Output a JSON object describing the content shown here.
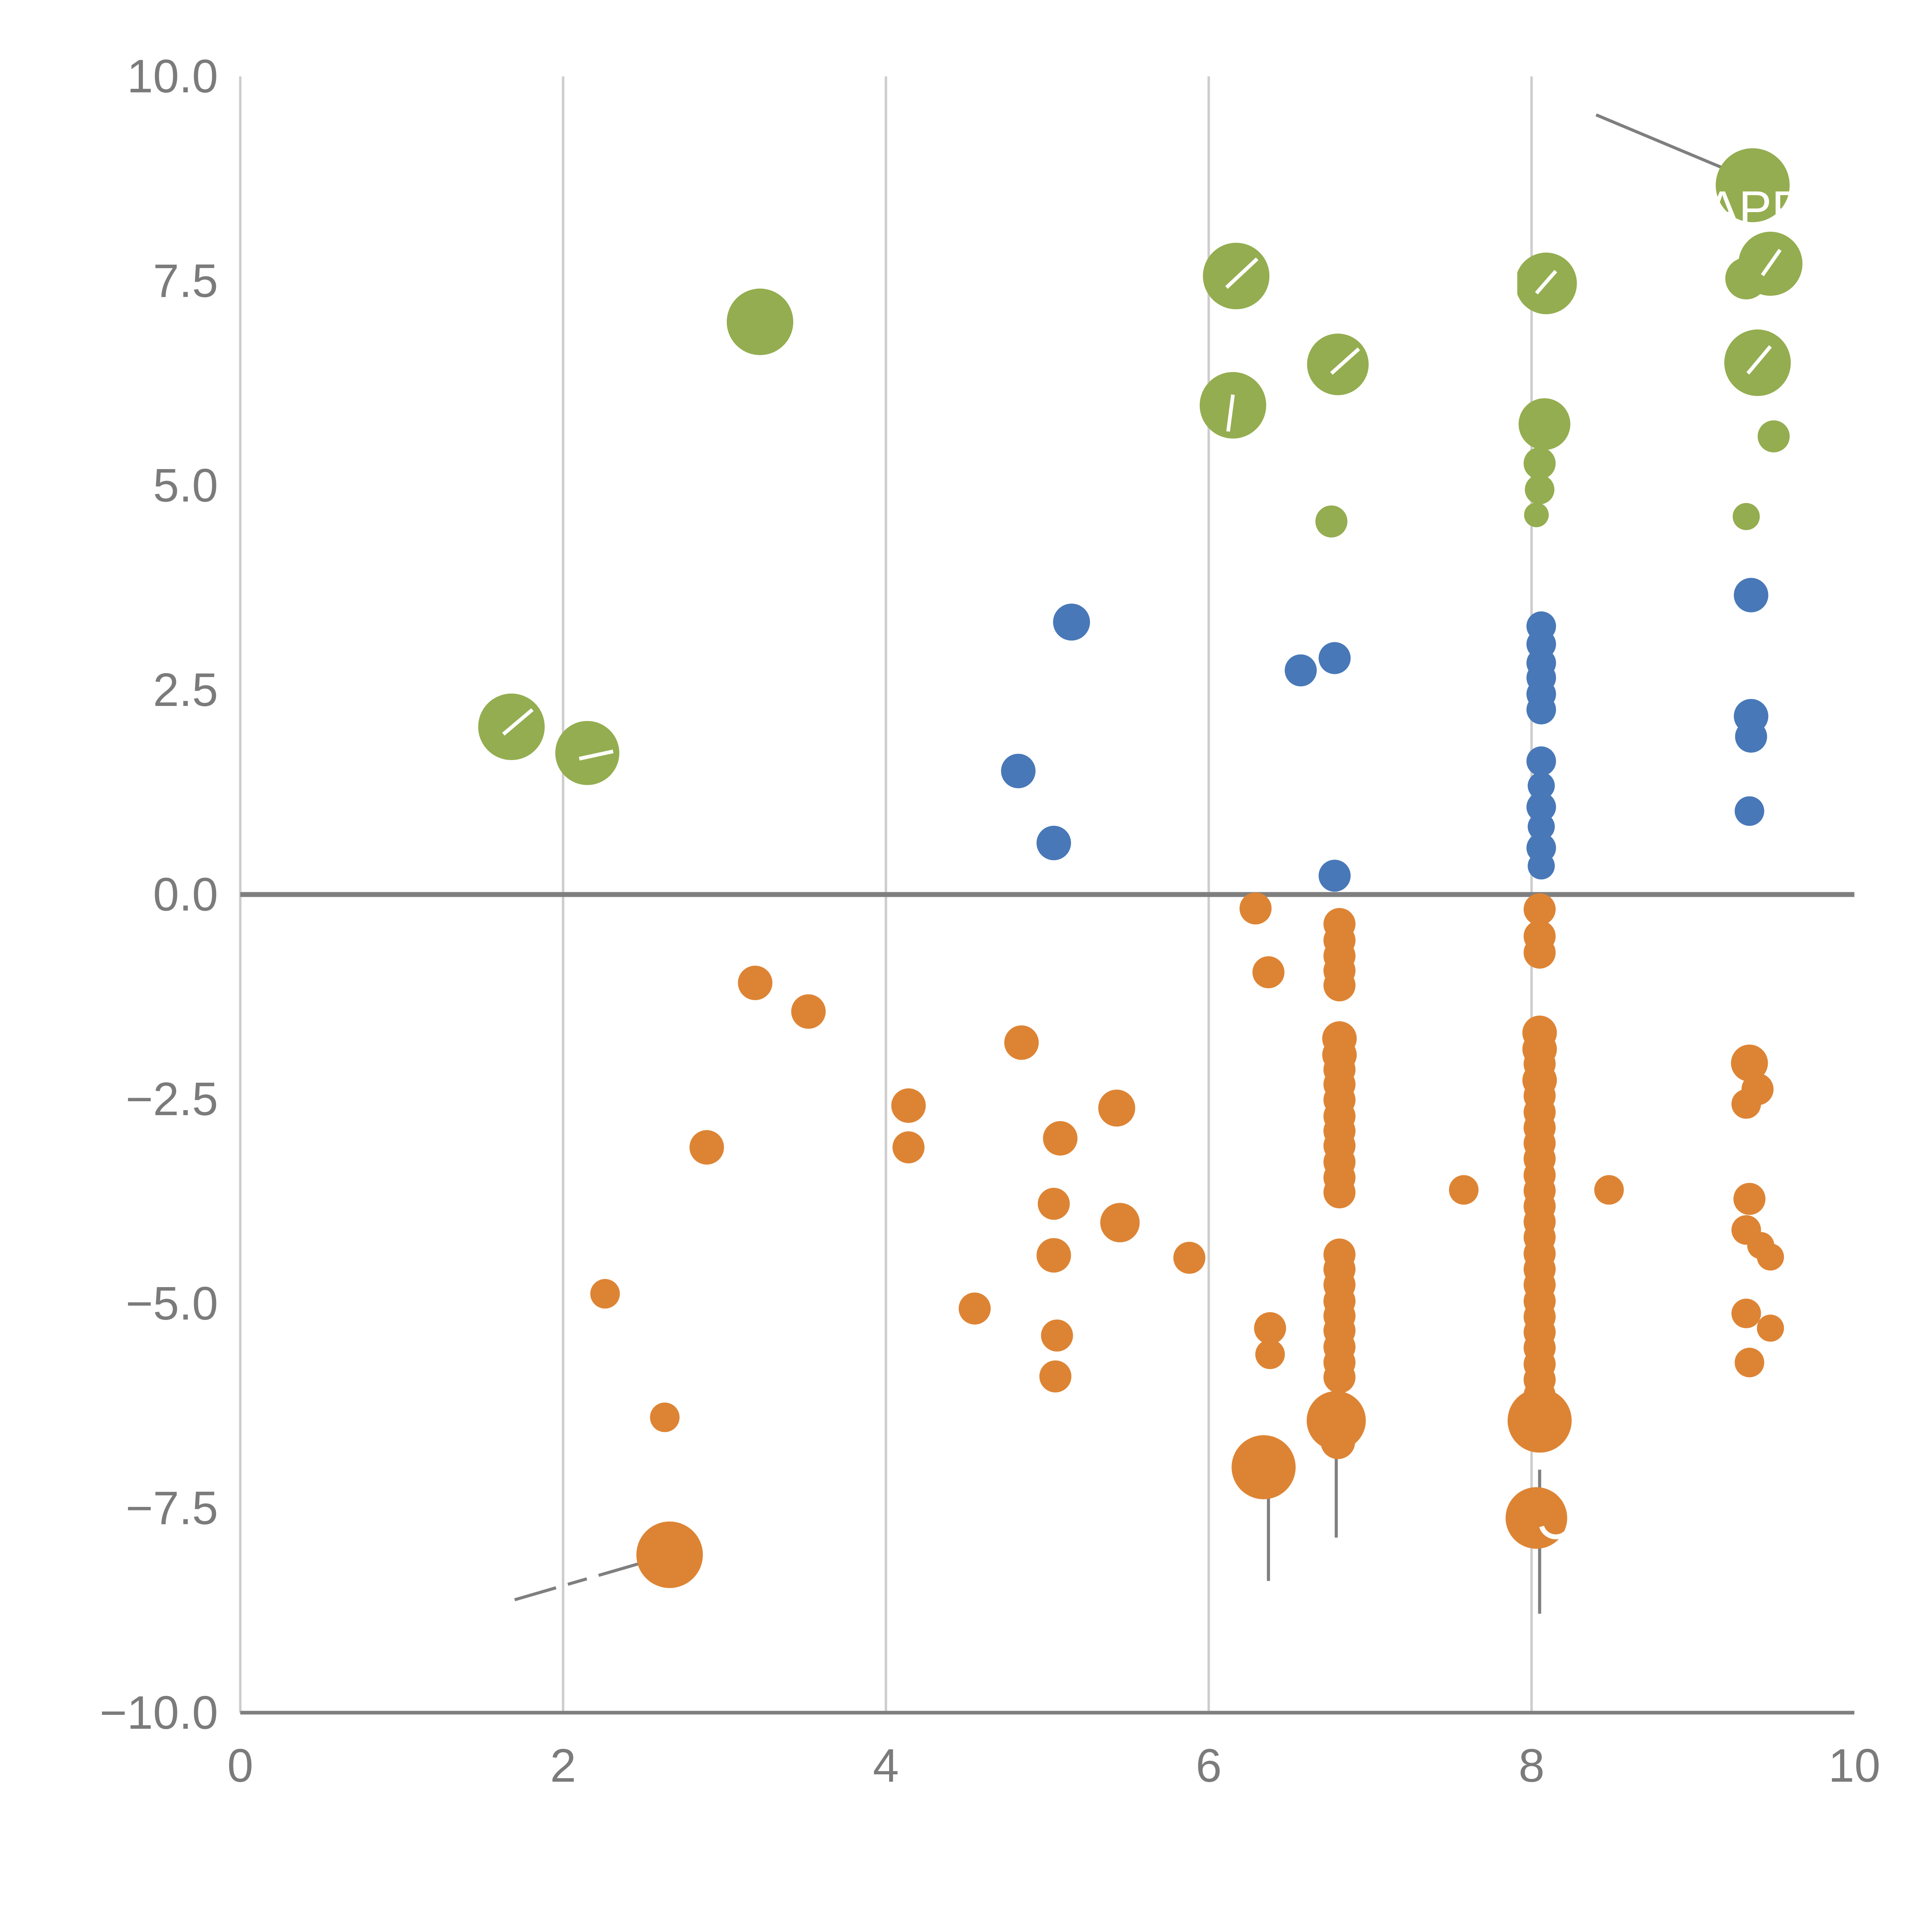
{
  "page": {
    "background": "#ffffff"
  },
  "chart_data": {
    "type": "scatter",
    "title": "",
    "xlabel": "",
    "ylabel": "",
    "xlim": [
      0,
      10
    ],
    "ylim": [
      -10,
      10
    ],
    "grid_on": true,
    "grid_x": [
      2,
      4,
      6,
      8
    ],
    "zero_line_y": 0,
    "x_ticks": [
      {
        "v": 0,
        "label": "0"
      },
      {
        "v": 2,
        "label": "2"
      },
      {
        "v": 4,
        "label": "4"
      },
      {
        "v": 6,
        "label": "6"
      },
      {
        "v": 8,
        "label": "8"
      },
      {
        "v": 10,
        "label": "10"
      }
    ],
    "y_ticks": [
      {
        "v": 10,
        "label": "10.0"
      },
      {
        "v": 7.5,
        "label": "7.5"
      },
      {
        "v": 5,
        "label": "5.0"
      },
      {
        "v": 2.5,
        "label": "2.5"
      },
      {
        "v": 0,
        "label": "0.0"
      },
      {
        "v": -2.5,
        "label": "−2.5"
      },
      {
        "v": -5,
        "label": "−5.0"
      },
      {
        "v": -7.5,
        "label": "−7.5"
      },
      {
        "v": -10,
        "label": "−10.0"
      }
    ],
    "colors": {
      "axis": "#7f7f7f",
      "grid": "#cdcdcd",
      "spine_light": "#cdcdcd",
      "tick_label": "#7b7b7b",
      "green": "#94ad50",
      "blue": "#4878b8",
      "orange": "#dd8434",
      "annotation_line": "#7f7f7f",
      "label_text": "#ffffff"
    },
    "series": [
      {
        "name": "green",
        "color_key": "green",
        "points": [
          [
            1.68,
            2.05,
            27
          ],
          [
            2.15,
            1.73,
            26
          ],
          [
            3.22,
            7.0,
            27
          ],
          [
            6.17,
            7.56,
            27
          ],
          [
            6.15,
            5.98,
            27
          ],
          [
            6.8,
            6.48,
            25
          ],
          [
            6.76,
            4.56,
            13
          ],
          [
            8.09,
            7.47,
            25
          ],
          [
            8.08,
            5.75,
            21
          ],
          [
            8.05,
            5.27,
            13
          ],
          [
            8.05,
            4.95,
            12
          ],
          [
            8.03,
            4.64,
            10
          ],
          [
            9.37,
            8.67,
            30
          ],
          [
            9.48,
            7.71,
            26
          ],
          [
            9.33,
            7.53,
            17
          ],
          [
            9.4,
            6.5,
            27
          ],
          [
            9.5,
            5.6,
            13
          ],
          [
            9.33,
            4.62,
            11
          ]
        ]
      },
      {
        "name": "blue",
        "color_key": "blue",
        "points": [
          [
            5.15,
            3.33,
            15
          ],
          [
            4.82,
            1.51,
            14
          ],
          [
            5.04,
            0.63,
            14
          ],
          [
            6.57,
            2.74,
            13
          ],
          [
            6.78,
            2.89,
            13
          ],
          [
            6.78,
            0.23,
            13
          ],
          [
            8.06,
            3.28,
            12
          ],
          [
            8.06,
            3.06,
            12
          ],
          [
            8.06,
            2.83,
            12
          ],
          [
            8.06,
            2.65,
            12
          ],
          [
            8.06,
            2.45,
            12
          ],
          [
            8.06,
            2.26,
            12
          ],
          [
            8.06,
            1.63,
            12
          ],
          [
            8.06,
            1.33,
            11
          ],
          [
            8.06,
            1.07,
            12
          ],
          [
            8.06,
            0.83,
            11
          ],
          [
            8.06,
            0.57,
            12
          ],
          [
            8.06,
            0.35,
            11
          ],
          [
            9.36,
            3.66,
            14
          ],
          [
            9.36,
            2.18,
            14
          ],
          [
            9.36,
            1.93,
            13
          ],
          [
            9.35,
            1.02,
            12
          ]
        ]
      },
      {
        "name": "orange",
        "color_key": "orange",
        "points": [
          [
            3.19,
            -1.08,
            14
          ],
          [
            3.52,
            -1.43,
            14
          ],
          [
            4.84,
            -1.81,
            14
          ],
          [
            4.14,
            -2.58,
            14
          ],
          [
            4.14,
            -3.09,
            13
          ],
          [
            5.43,
            -2.61,
            15
          ],
          [
            5.08,
            -2.98,
            14
          ],
          [
            2.89,
            -3.09,
            14
          ],
          [
            5.04,
            -3.78,
            13
          ],
          [
            5.45,
            -4.01,
            16
          ],
          [
            5.88,
            -4.44,
            13
          ],
          [
            5.04,
            -4.41,
            14
          ],
          [
            4.55,
            -5.06,
            13
          ],
          [
            5.06,
            -5.39,
            13
          ],
          [
            5.05,
            -5.89,
            13
          ],
          [
            2.26,
            -4.88,
            12
          ],
          [
            2.63,
            -6.39,
            12
          ],
          [
            2.66,
            -8.07,
            27
          ],
          [
            6.29,
            -0.17,
            13
          ],
          [
            6.37,
            -0.95,
            13
          ],
          [
            6.38,
            -5.3,
            13
          ],
          [
            6.38,
            -5.62,
            12
          ],
          [
            6.34,
            -7.0,
            26
          ],
          [
            6.79,
            -6.43,
            24
          ],
          [
            6.8,
            -6.69,
            14
          ],
          [
            7.58,
            -3.61,
            12
          ],
          [
            8.48,
            -3.61,
            12
          ],
          [
            6.81,
            -0.36,
            13
          ],
          [
            6.81,
            -0.56,
            13
          ],
          [
            6.81,
            -0.75,
            13
          ],
          [
            6.81,
            -0.93,
            13
          ],
          [
            6.81,
            -1.11,
            13
          ],
          [
            6.81,
            -1.76,
            14
          ],
          [
            6.81,
            -1.96,
            14
          ],
          [
            6.81,
            -2.14,
            13
          ],
          [
            6.81,
            -2.32,
            13
          ],
          [
            6.81,
            -2.51,
            13
          ],
          [
            6.81,
            -2.71,
            13
          ],
          [
            6.81,
            -2.89,
            13
          ],
          [
            6.81,
            -3.07,
            13
          ],
          [
            6.81,
            -3.27,
            13
          ],
          [
            6.81,
            -3.46,
            13
          ],
          [
            6.81,
            -3.64,
            13
          ],
          [
            6.81,
            -4.4,
            13
          ],
          [
            6.81,
            -4.58,
            13
          ],
          [
            6.81,
            -4.77,
            13
          ],
          [
            6.81,
            -4.97,
            13
          ],
          [
            6.81,
            -5.15,
            13
          ],
          [
            6.81,
            -5.33,
            13
          ],
          [
            6.81,
            -5.53,
            13
          ],
          [
            6.81,
            -5.72,
            13
          ],
          [
            6.81,
            -5.9,
            13
          ],
          [
            8.05,
            -0.18,
            13
          ],
          [
            8.05,
            -0.51,
            13
          ],
          [
            8.05,
            -0.71,
            13
          ],
          [
            8.05,
            -1.69,
            14
          ],
          [
            8.05,
            -1.89,
            14
          ],
          [
            8.05,
            -2.07,
            13
          ],
          [
            8.05,
            -2.27,
            14
          ],
          [
            8.05,
            -2.46,
            13
          ],
          [
            8.05,
            -2.66,
            13
          ],
          [
            8.05,
            -2.85,
            13
          ],
          [
            8.05,
            -3.04,
            13
          ],
          [
            8.05,
            -3.23,
            13
          ],
          [
            8.05,
            -3.43,
            13
          ],
          [
            8.05,
            -3.62,
            13
          ],
          [
            8.05,
            -3.81,
            13
          ],
          [
            8.05,
            -4.0,
            13
          ],
          [
            8.05,
            -4.19,
            13
          ],
          [
            8.05,
            -4.39,
            13
          ],
          [
            8.05,
            -4.58,
            13
          ],
          [
            8.05,
            -4.77,
            13
          ],
          [
            8.05,
            -4.97,
            13
          ],
          [
            8.05,
            -5.16,
            13
          ],
          [
            8.05,
            -5.35,
            13
          ],
          [
            8.05,
            -5.54,
            13
          ],
          [
            8.05,
            -5.74,
            13
          ],
          [
            8.05,
            -5.93,
            13
          ],
          [
            8.05,
            -6.12,
            13
          ],
          [
            8.05,
            -6.43,
            26
          ],
          [
            8.03,
            -7.62,
            25
          ],
          [
            9.35,
            -2.06,
            15
          ],
          [
            9.4,
            -2.38,
            13
          ],
          [
            9.33,
            -2.56,
            12
          ],
          [
            9.35,
            -3.72,
            13
          ],
          [
            9.33,
            -4.1,
            12
          ],
          [
            9.42,
            -4.29,
            11
          ],
          [
            9.48,
            -4.43,
            11
          ],
          [
            9.33,
            -5.12,
            12
          ],
          [
            9.48,
            -5.3,
            11
          ],
          [
            9.35,
            -5.72,
            12
          ]
        ]
      }
    ],
    "annotations": {
      "labels": [
        {
          "text": "APP",
          "x": 9.08,
          "y": 8.18,
          "size": 40
        }
      ],
      "gray_lines": [
        {
          "x1": 8.4,
          "y1": 9.53,
          "x2": 9.38,
          "y2": 8.72,
          "dash": false
        },
        {
          "x1": 2.66,
          "y1": -8.07,
          "x2": 1.7,
          "y2": -8.62,
          "dash": true
        },
        {
          "x1": 6.37,
          "y1": -7.18,
          "x2": 6.37,
          "y2": -8.39,
          "dash": false
        },
        {
          "x1": 6.79,
          "y1": -6.54,
          "x2": 6.79,
          "y2": -7.86,
          "dash": false
        },
        {
          "x1": 8.05,
          "y1": -7.03,
          "x2": 8.05,
          "y2": -8.79,
          "dash": false
        }
      ],
      "white_lines": [
        {
          "x1": 1.63,
          "y1": 1.96,
          "x2": 1.81,
          "y2": 2.26
        },
        {
          "x1": 2.1,
          "y1": 1.66,
          "x2": 2.31,
          "y2": 1.75
        },
        {
          "x1": 6.11,
          "y1": 7.42,
          "x2": 6.3,
          "y2": 7.77
        },
        {
          "x1": 6.15,
          "y1": 6.11,
          "x2": 6.12,
          "y2": 5.66
        },
        {
          "x1": 6.76,
          "y1": 6.37,
          "x2": 6.93,
          "y2": 6.67
        },
        {
          "x1": 8.03,
          "y1": 7.35,
          "x2": 8.15,
          "y2": 7.62
        },
        {
          "x1": 9.43,
          "y1": 7.57,
          "x2": 9.54,
          "y2": 7.88
        },
        {
          "x1": 9.34,
          "y1": 6.37,
          "x2": 9.48,
          "y2": 6.7
        },
        {
          "x1": 7.9,
          "y1": 7.72,
          "x2": 7.9,
          "y2": 7.32
        }
      ],
      "white_circles": [
        {
          "x": 8.15,
          "y": -7.67,
          "r": 12
        }
      ]
    }
  }
}
